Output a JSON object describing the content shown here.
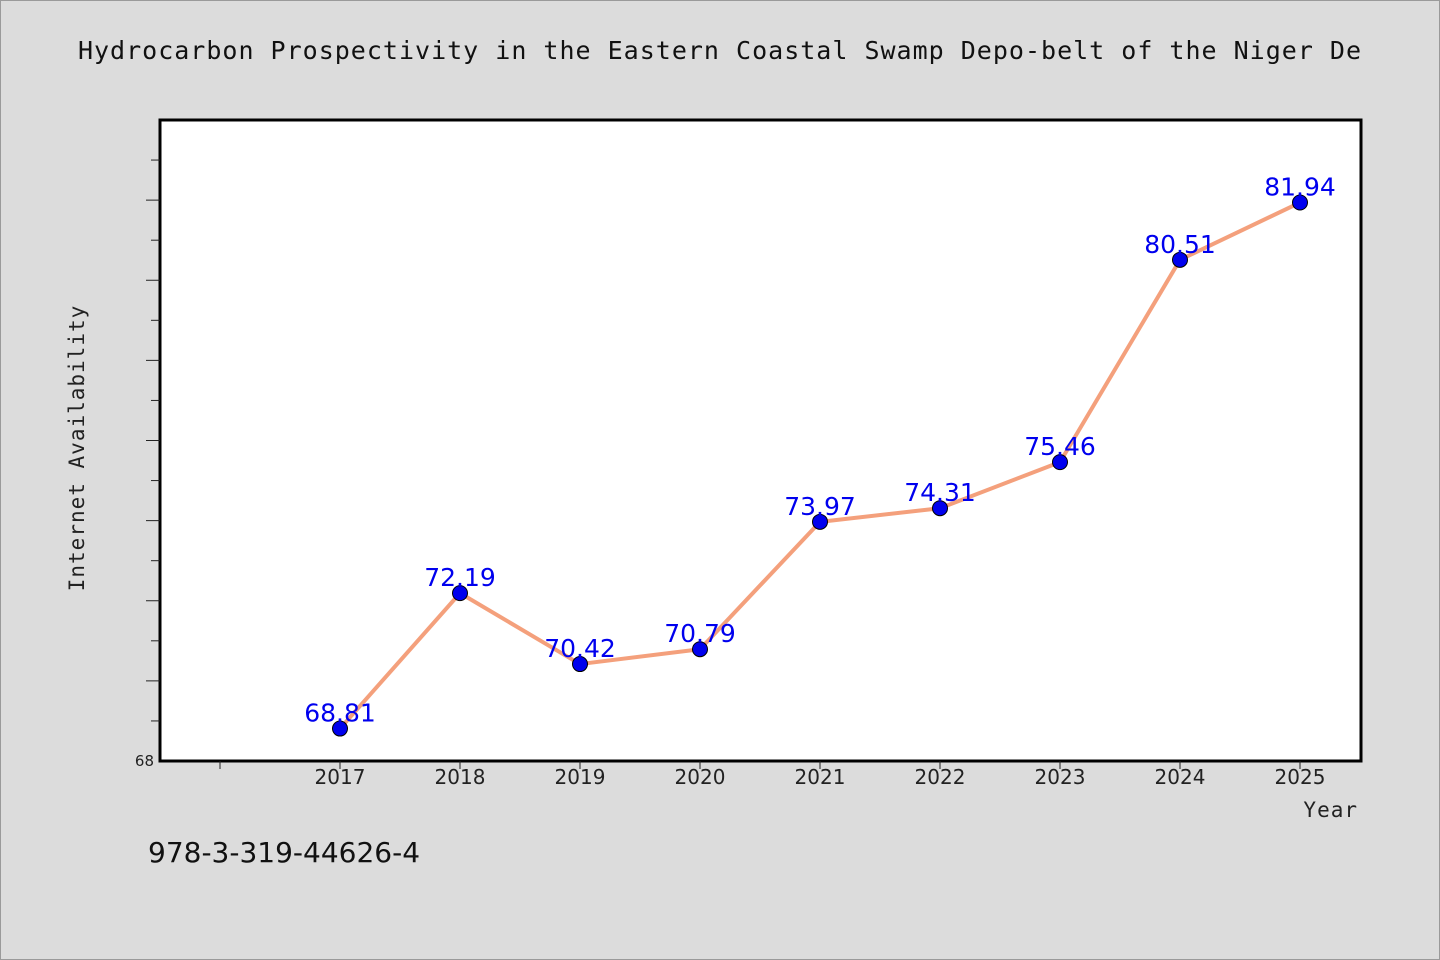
{
  "chart_data": {
    "type": "line",
    "title": "Hydrocarbon Prospectivity in the Eastern Coastal Swamp Depo-belt of the Niger De",
    "xlabel": "Year",
    "ylabel": "Internet Availability",
    "x": [
      "2017",
      "2018",
      "2019",
      "2020",
      "2021",
      "2022",
      "2023",
      "2024",
      "2025"
    ],
    "series": [
      {
        "values": [
          68.81,
          72.19,
          70.42,
          70.79,
          73.97,
          74.31,
          75.46,
          80.51,
          81.94
        ],
        "labels": [
          "68.81",
          "72.19",
          "70.42",
          "70.79",
          "73.97",
          "74.31",
          "75.46",
          "80.51",
          "81.94"
        ],
        "line_color": "#f4a07c",
        "marker_color": "#0000ee"
      }
    ],
    "ylim": [
      68,
      84
    ],
    "ytick_labels": [
      "68"
    ],
    "grid": false,
    "label_color": "#0000ee"
  },
  "footer": {
    "isbn": "978-3-319-44626-4"
  }
}
